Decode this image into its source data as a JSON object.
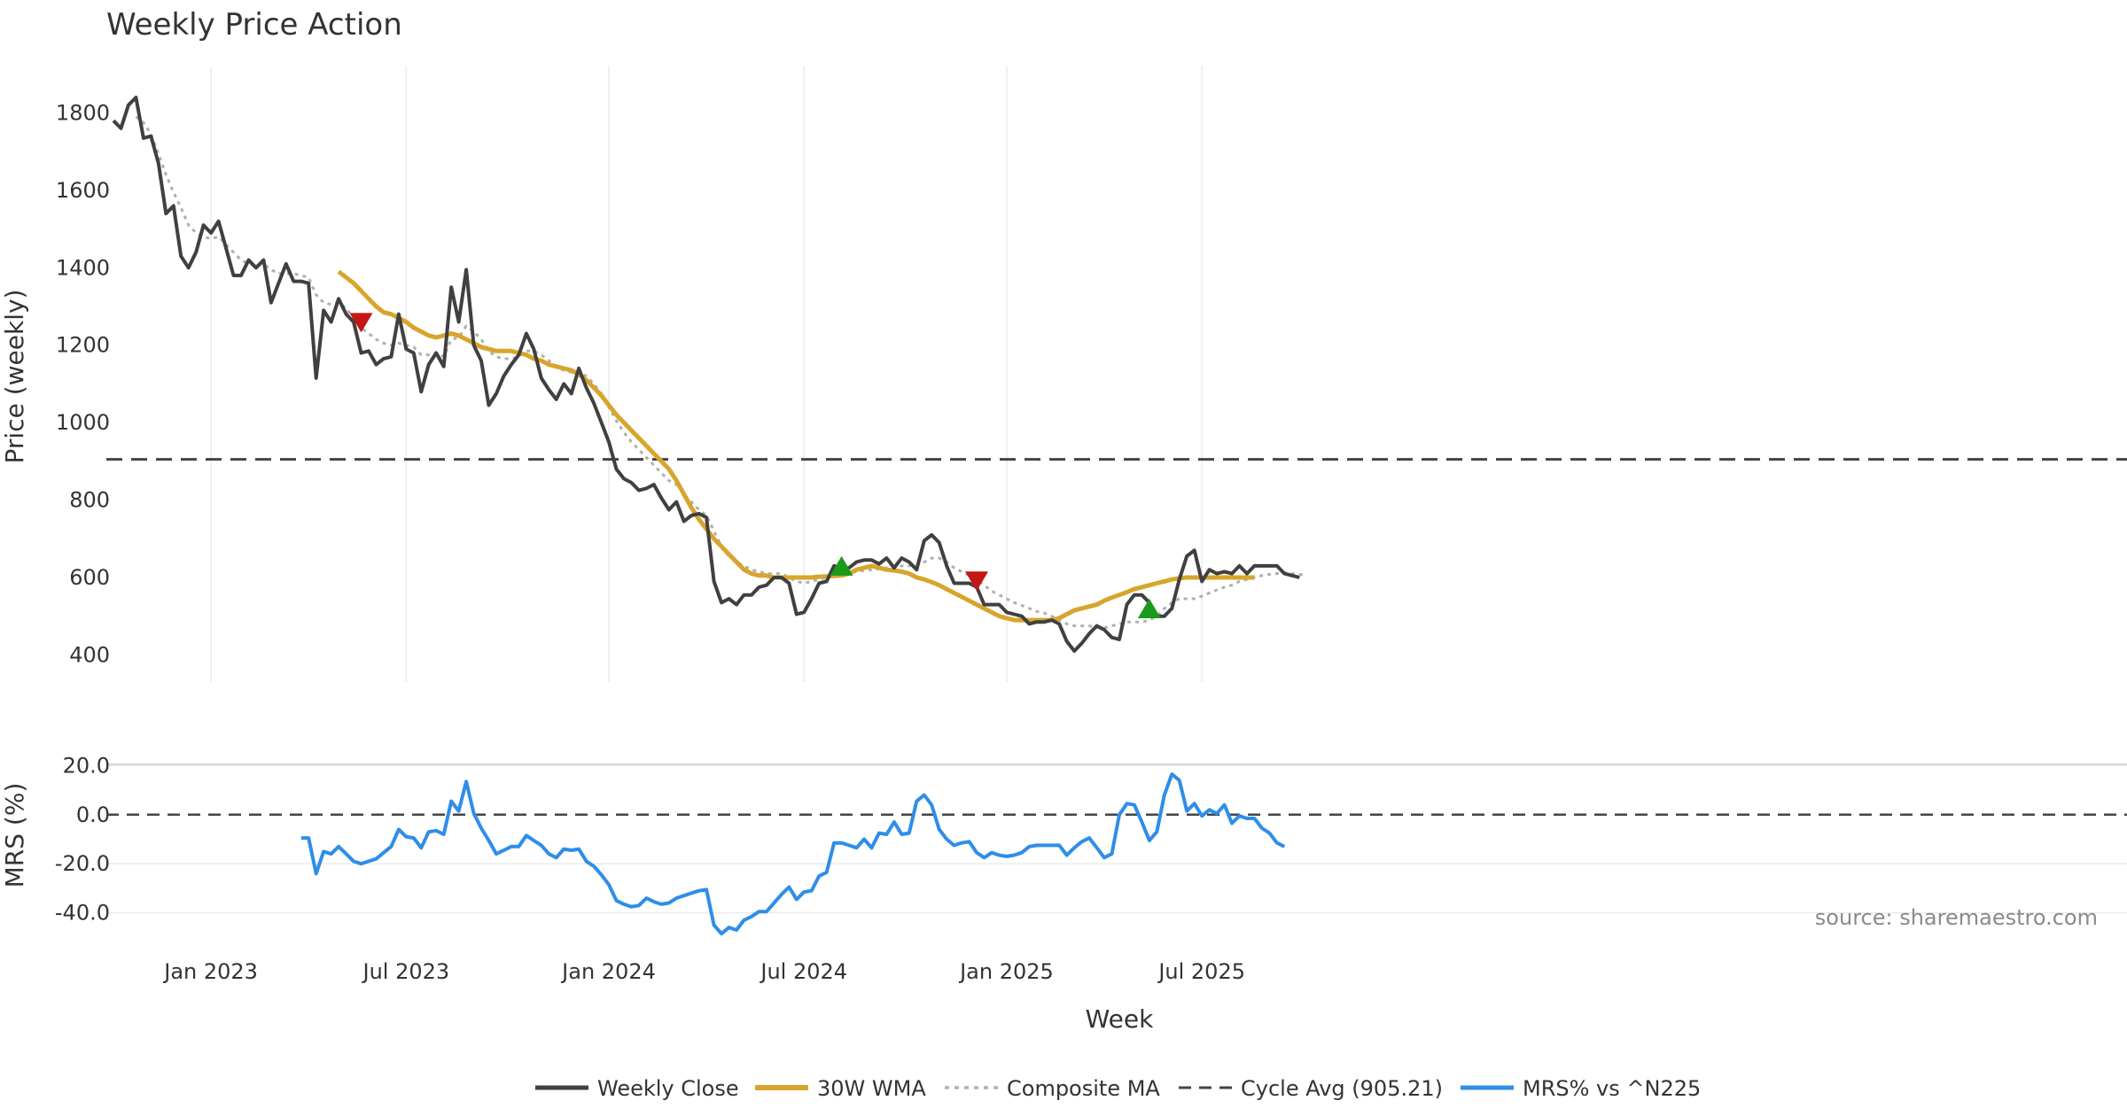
{
  "chart_data": {
    "type": "line",
    "title": "Weekly Price Action",
    "xlabel": "Week",
    "x_ticks": [
      "Jan 2023",
      "Jul 2023",
      "Jan 2024",
      "Jul 2024",
      "Jan 2025",
      "Jul 2025"
    ],
    "watermark": "source: sharemaestro.com",
    "price_panel": {
      "ylabel": "Price (weekly)",
      "ylim": [
        330,
        1920
      ],
      "y_ticks": [
        "400",
        "600",
        "800",
        "1000",
        "1200",
        "1400",
        "1600",
        "1800"
      ],
      "grid": true,
      "series": [
        {
          "name": "Weekly Close",
          "color": "#404040",
          "style": "solid",
          "values": [
            1780,
            1760,
            1820,
            1840,
            1735,
            1740,
            1670,
            1540,
            1560,
            1430,
            1400,
            1440,
            1510,
            1490,
            1520,
            1450,
            1380,
            1380,
            1420,
            1400,
            1420,
            1310,
            1360,
            1410,
            1365,
            1365,
            1360,
            1115,
            1290,
            1260,
            1320,
            1280,
            1260,
            1180,
            1185,
            1150,
            1165,
            1170,
            1280,
            1190,
            1180,
            1080,
            1150,
            1180,
            1145,
            1350,
            1260,
            1395,
            1200,
            1160,
            1045,
            1075,
            1120,
            1150,
            1175,
            1230,
            1190,
            1115,
            1085,
            1060,
            1100,
            1075,
            1140,
            1090,
            1050,
            1000,
            950,
            880,
            855,
            845,
            825,
            830,
            840,
            805,
            775,
            795,
            745,
            760,
            765,
            755,
            590,
            535,
            545,
            530,
            555,
            555,
            575,
            580,
            600,
            600,
            585,
            505,
            510,
            545,
            585,
            590,
            630,
            625,
            625,
            640,
            645,
            645,
            635,
            650,
            625,
            650,
            640,
            620,
            695,
            710,
            690,
            630,
            585,
            585,
            585,
            575,
            530,
            530,
            530,
            510,
            505,
            500,
            480,
            485,
            485,
            490,
            480,
            435,
            410,
            430,
            455,
            475,
            465,
            445,
            440,
            530,
            555,
            555,
            535,
            500,
            500,
            520,
            595,
            655,
            670,
            590,
            620,
            610,
            615,
            610,
            630,
            610,
            630,
            630,
            630,
            630,
            610,
            605,
            600
          ]
        },
        {
          "name": "30W WMA",
          "color": "#d8a52c",
          "style": "solid",
          "values": [
            null,
            null,
            null,
            null,
            null,
            null,
            null,
            null,
            null,
            null,
            null,
            null,
            null,
            null,
            null,
            null,
            null,
            null,
            null,
            null,
            null,
            null,
            null,
            null,
            null,
            null,
            null,
            null,
            null,
            null,
            1390,
            1375,
            1360,
            1340,
            1320,
            1300,
            1285,
            1280,
            1270,
            1260,
            1245,
            1235,
            1225,
            1220,
            1225,
            1230,
            1225,
            1215,
            1205,
            1195,
            1190,
            1185,
            1185,
            1185,
            1180,
            1175,
            1165,
            1160,
            1150,
            1145,
            1140,
            1135,
            1125,
            1110,
            1090,
            1070,
            1045,
            1020,
            1000,
            980,
            960,
            940,
            920,
            900,
            880,
            850,
            815,
            780,
            750,
            725,
            700,
            680,
            660,
            640,
            620,
            610,
            605,
            605,
            600,
            600,
            600,
            600,
            600,
            600,
            602,
            603,
            604,
            605,
            610,
            620,
            625,
            630,
            625,
            620,
            618,
            615,
            610,
            600,
            595,
            588,
            580,
            570,
            560,
            550,
            540,
            530,
            520,
            510,
            500,
            495,
            490,
            490,
            490,
            490,
            490,
            490,
            495,
            505,
            515,
            520,
            525,
            530,
            540,
            548,
            555,
            562,
            570,
            575,
            580,
            585,
            590,
            595,
            598,
            600,
            600,
            600,
            600,
            600,
            600,
            600,
            600,
            600,
            600
          ]
        },
        {
          "name": "Composite MA",
          "color": "#b0b0b0",
          "style": "dotted",
          "values": [
            null,
            null,
            null,
            1790,
            1775,
            1745,
            1695,
            1640,
            1595,
            1555,
            1510,
            1490,
            1480,
            1475,
            1480,
            1460,
            1440,
            1420,
            1410,
            1405,
            1410,
            1395,
            1385,
            1385,
            1385,
            1380,
            1375,
            1330,
            1310,
            1305,
            1310,
            1295,
            1270,
            1245,
            1230,
            1215,
            1205,
            1200,
            1205,
            1200,
            1195,
            1175,
            1175,
            1180,
            1170,
            1215,
            1220,
            1250,
            1235,
            1215,
            1185,
            1170,
            1165,
            1165,
            1170,
            1185,
            1185,
            1175,
            1160,
            1145,
            1135,
            1130,
            1130,
            1120,
            1100,
            1075,
            1040,
            1005,
            975,
            950,
            930,
            910,
            890,
            870,
            850,
            840,
            815,
            795,
            775,
            760,
            720,
            680,
            655,
            640,
            630,
            620,
            615,
            610,
            610,
            610,
            600,
            590,
            585,
            590,
            595,
            600,
            605,
            610,
            612,
            615,
            618,
            620,
            622,
            625,
            625,
            630,
            630,
            632,
            640,
            650,
            650,
            640,
            625,
            615,
            605,
            595,
            580,
            565,
            555,
            545,
            535,
            528,
            520,
            512,
            508,
            500,
            490,
            480,
            475,
            475,
            475,
            470,
            470,
            475,
            480,
            485,
            485,
            485,
            490,
            500,
            520,
            535,
            545,
            545,
            545,
            552,
            560,
            568,
            575,
            580,
            590,
            595,
            600,
            605,
            608,
            610,
            612,
            610,
            608,
            606
          ]
        },
        {
          "name": "Cycle Avg (905.21)",
          "color": "#444444",
          "style": "dashed",
          "value": 905.21
        }
      ],
      "markers": [
        {
          "type": "sell",
          "x_index": 33,
          "value": 1258,
          "color": "#c41616"
        },
        {
          "type": "buy",
          "x_index": 97,
          "value": 630,
          "color": "#1a9a1a"
        },
        {
          "type": "sell",
          "x_index": 115,
          "value": 590,
          "color": "#c41616"
        },
        {
          "type": "buy",
          "x_index": 138,
          "value": 520,
          "color": "#1a9a1a"
        }
      ]
    },
    "mrs_panel": {
      "ylabel": "MRS (%)",
      "ylim": [
        -47,
        27
      ],
      "y_ticks": [
        "-40.0",
        "-20.0",
        "0.0",
        "20.0"
      ],
      "zero_line": true,
      "series": [
        {
          "name": "MRS% vs ^N225",
          "color": "#2e8ee8",
          "values": [
            null,
            null,
            null,
            null,
            null,
            null,
            null,
            null,
            null,
            null,
            null,
            null,
            null,
            null,
            null,
            null,
            null,
            null,
            null,
            null,
            null,
            null,
            null,
            null,
            null,
            -9.5,
            -9.5,
            -24,
            -15,
            -16,
            -13,
            -16,
            -19,
            -20,
            -19,
            -18,
            -15.5,
            -13,
            -6,
            -9,
            -9.5,
            -13.5,
            -7,
            -6.5,
            -8,
            5.5,
            1.5,
            13.5,
            0.5,
            -5.5,
            -10.5,
            -16,
            -14.5,
            -13,
            -13,
            -8.5,
            -10.5,
            -12.5,
            -16,
            -17.5,
            -14,
            -14.5,
            -14,
            -19,
            -21,
            -24.5,
            -28.5,
            -35,
            -36.5,
            -37.5,
            -37,
            -34,
            -35.5,
            -36.5,
            -36,
            -34,
            -33,
            -32,
            -31,
            -30.5,
            -45,
            -48.5,
            -46,
            -47,
            -43,
            -41.5,
            -39.5,
            -39.5,
            -36,
            -32.5,
            -29.5,
            -34.5,
            -31.5,
            -31,
            -25,
            -23.5,
            -11.5,
            -11.5,
            -12.5,
            -13.5,
            -10,
            -13.5,
            -7.5,
            -8,
            -3,
            -8,
            -7.5,
            5.5,
            8,
            4,
            -6,
            -10,
            -12.5,
            -11.5,
            -11,
            -15.5,
            -17.5,
            -15.5,
            -16.5,
            -17,
            -16.5,
            -15.5,
            -13,
            -12.5,
            -12.5,
            -12.5,
            -12.5,
            -16.5,
            -13.5,
            -11,
            -9.5,
            -13.5,
            -17.5,
            -16,
            0,
            4.5,
            4,
            -3,
            -10.5,
            -7,
            8,
            16.5,
            14,
            1.5,
            4.5,
            -0.5,
            2,
            0.5,
            4,
            -3.5,
            -0.5,
            -1.5,
            -1.5,
            -5.5,
            -7.5,
            -11.5,
            -13
          ]
        }
      ]
    },
    "legend": {
      "placement": "bottom-center",
      "items": [
        "Weekly Close",
        "30W WMA",
        "Composite MA",
        "Cycle Avg (905.21)",
        "MRS% vs ^N225"
      ]
    }
  }
}
